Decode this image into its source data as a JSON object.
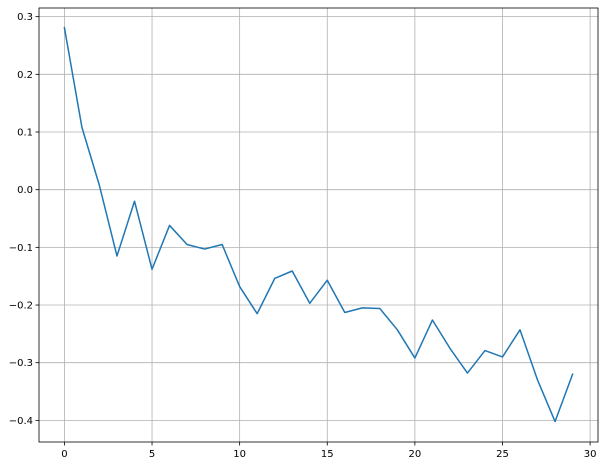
{
  "chart_data": {
    "type": "line",
    "title": "",
    "xlabel": "",
    "ylabel": "",
    "xlim": [
      -1.45,
      30.45
    ],
    "ylim": [
      -0.4375,
      0.315
    ],
    "grid": true,
    "x_ticks": [
      0,
      5,
      10,
      15,
      20,
      25,
      30
    ],
    "x_tick_labels": [
      "0",
      "5",
      "10",
      "15",
      "20",
      "25",
      "30"
    ],
    "y_ticks": [
      0.3,
      0.2,
      0.1,
      0.0,
      -0.1,
      -0.2,
      -0.3,
      -0.4
    ],
    "y_tick_labels": [
      "0.3",
      "0.2",
      "0.1",
      "0.0",
      "−0.1",
      "−0.2",
      "−0.3",
      "−0.4"
    ],
    "series": [
      {
        "color": "#1f77b4",
        "x": [
          0,
          1,
          2,
          3,
          4,
          5,
          6,
          7,
          8,
          9,
          10,
          11,
          12,
          13,
          14,
          15,
          16,
          17,
          18,
          19,
          20,
          21,
          22,
          23,
          24,
          25,
          26,
          27,
          28,
          29
        ],
        "values": [
          0.281,
          0.108,
          0.007,
          -0.115,
          -0.02,
          -0.138,
          -0.062,
          -0.095,
          -0.103,
          -0.095,
          -0.168,
          -0.215,
          -0.154,
          -0.141,
          -0.197,
          -0.157,
          -0.213,
          -0.205,
          -0.206,
          -0.243,
          -0.292,
          -0.226,
          -0.275,
          -0.318,
          -0.279,
          -0.29,
          -0.243,
          -0.33,
          -0.402,
          -0.32
        ]
      }
    ]
  }
}
